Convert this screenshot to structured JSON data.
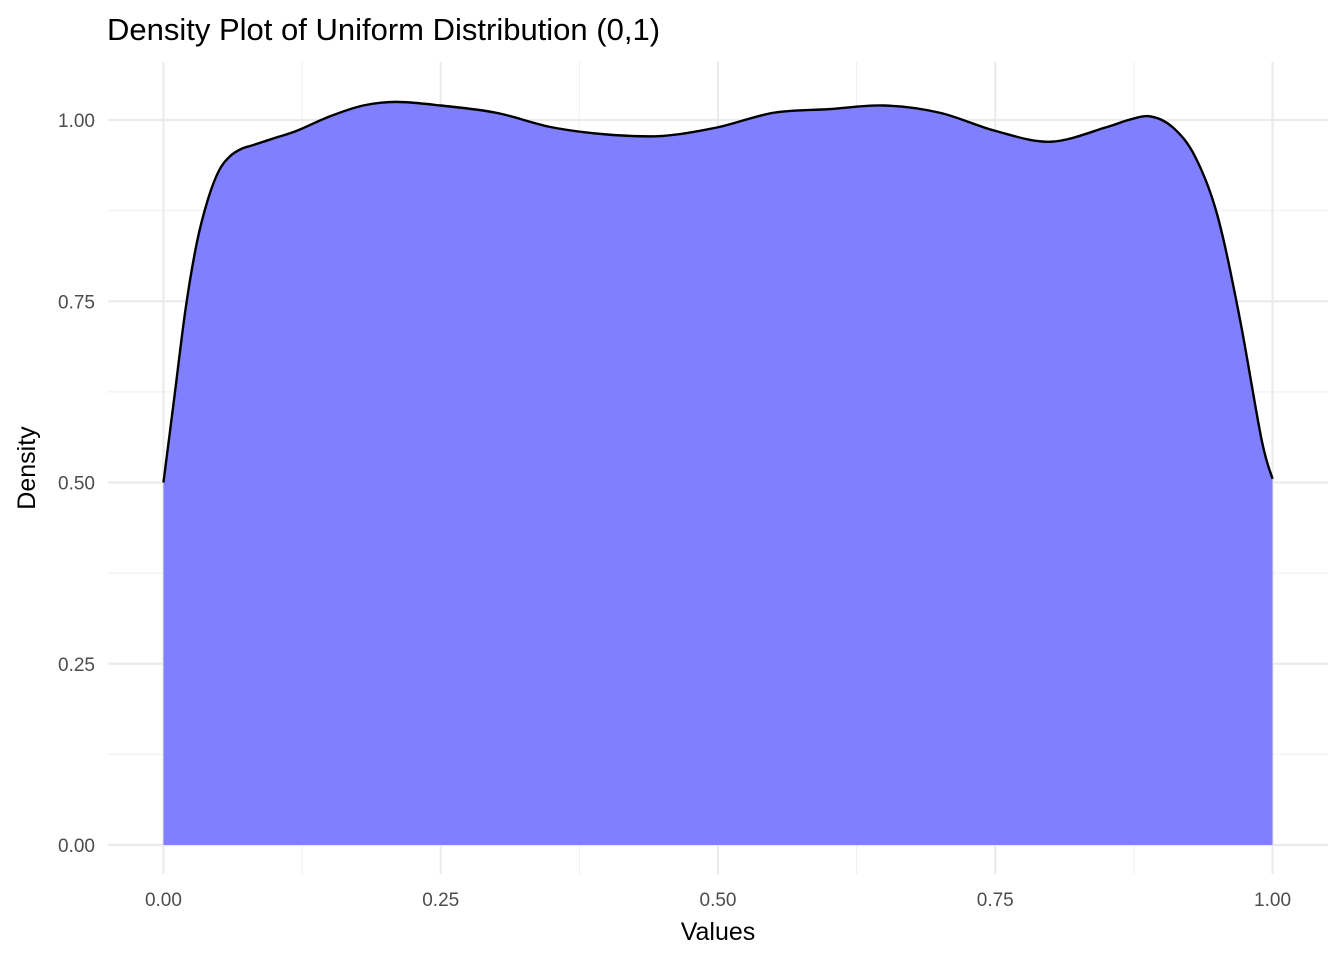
{
  "chart_data": {
    "type": "area",
    "title": "Density Plot of Uniform Distribution (0,1)",
    "xlabel": "Values",
    "ylabel": "Density",
    "xlim": [
      -0.05,
      1.05
    ],
    "ylim": [
      -0.04,
      1.08
    ],
    "x_ticks": [
      0.0,
      0.25,
      0.5,
      0.75,
      1.0
    ],
    "x_tick_labels": [
      "0.00",
      "0.25",
      "0.50",
      "0.75",
      "1.00"
    ],
    "y_ticks": [
      0.0,
      0.25,
      0.5,
      0.75,
      1.0
    ],
    "y_tick_labels": [
      "0.00",
      "0.25",
      "0.50",
      "0.75",
      "1.00"
    ],
    "grid": true,
    "fill_color": "#8080ff",
    "line_color": "#000000",
    "series": [
      {
        "x": [
          0.0,
          0.01,
          0.02,
          0.03,
          0.04,
          0.05,
          0.06,
          0.07,
          0.08,
          0.09,
          0.1,
          0.12,
          0.15,
          0.18,
          0.21,
          0.25,
          0.3,
          0.35,
          0.4,
          0.45,
          0.5,
          0.55,
          0.6,
          0.65,
          0.7,
          0.75,
          0.8,
          0.85,
          0.87,
          0.89,
          0.91,
          0.93,
          0.95,
          0.97,
          0.99,
          1.0
        ],
        "y": [
          0.5,
          0.62,
          0.74,
          0.83,
          0.89,
          0.93,
          0.95,
          0.96,
          0.965,
          0.97,
          0.975,
          0.985,
          1.005,
          1.02,
          1.025,
          1.02,
          1.01,
          0.99,
          0.98,
          0.978,
          0.99,
          1.01,
          1.015,
          1.02,
          1.01,
          0.985,
          0.97,
          0.99,
          1.0,
          1.005,
          0.99,
          0.95,
          0.87,
          0.73,
          0.56,
          0.505
        ]
      }
    ]
  }
}
